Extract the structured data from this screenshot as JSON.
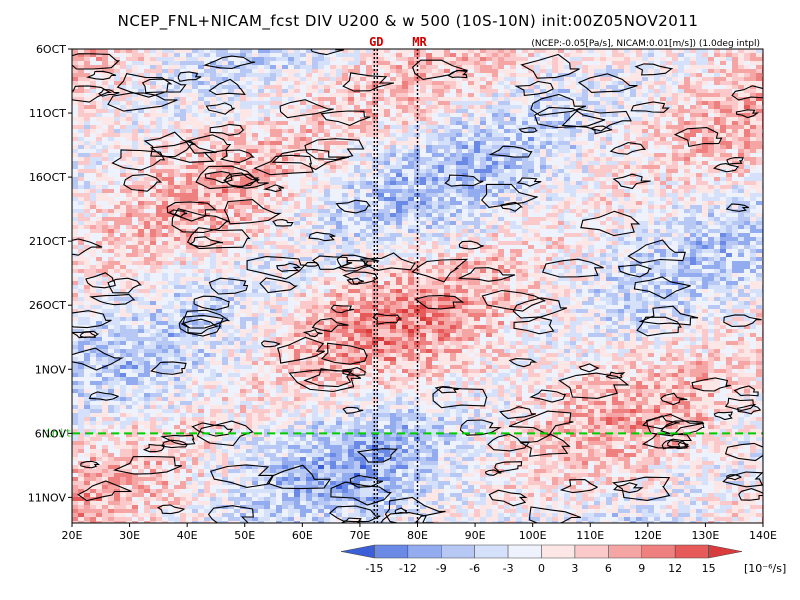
{
  "chart_data": {
    "type": "heatmap",
    "title": "NCEP_FNL+NICAM_fcst DIV U200 & w 500 (10S-10N) init:00Z05NOV2011",
    "subtitle": "(NCEP:-0.05[Pa/s], NICAM:0.01[m/s]) (1.0deg intpl)",
    "x_axis": {
      "ticks": [
        "20E",
        "30E",
        "40E",
        "50E",
        "60E",
        "70E",
        "80E",
        "90E",
        "100E",
        "110E",
        "120E",
        "130E",
        "140E"
      ],
      "range": [
        20,
        140
      ]
    },
    "y_axis": {
      "ticks": [
        "6OCT",
        "11OCT",
        "16OCT",
        "21OCT",
        "26OCT",
        "1NOV",
        "6NOV",
        "11NOV"
      ],
      "range_days": [
        "6OCT",
        "12NOV"
      ]
    },
    "init_line": {
      "label": "init",
      "date": "5NOV",
      "color": "#00cc00"
    },
    "markers": [
      {
        "label": "GD",
        "lon": 72.5,
        "color": "#cc0000"
      },
      {
        "label": "MR",
        "lon": 80,
        "color": "#cc0000"
      }
    ],
    "colorbar": {
      "levels": [
        "-15",
        "-12",
        "-9",
        "-6",
        "-3",
        "0",
        "3",
        "6",
        "9",
        "12",
        "15"
      ],
      "units": "[10⁻⁶/s]",
      "colors": [
        "#3b5fd9",
        "#6a8ae6",
        "#93abef",
        "#b7c8f5",
        "#d5e0fa",
        "#eef2fd",
        "#fde6e6",
        "#fbc9c9",
        "#f6a5a5",
        "#ef8080",
        "#e65a5a",
        "#d93c3c"
      ]
    }
  }
}
